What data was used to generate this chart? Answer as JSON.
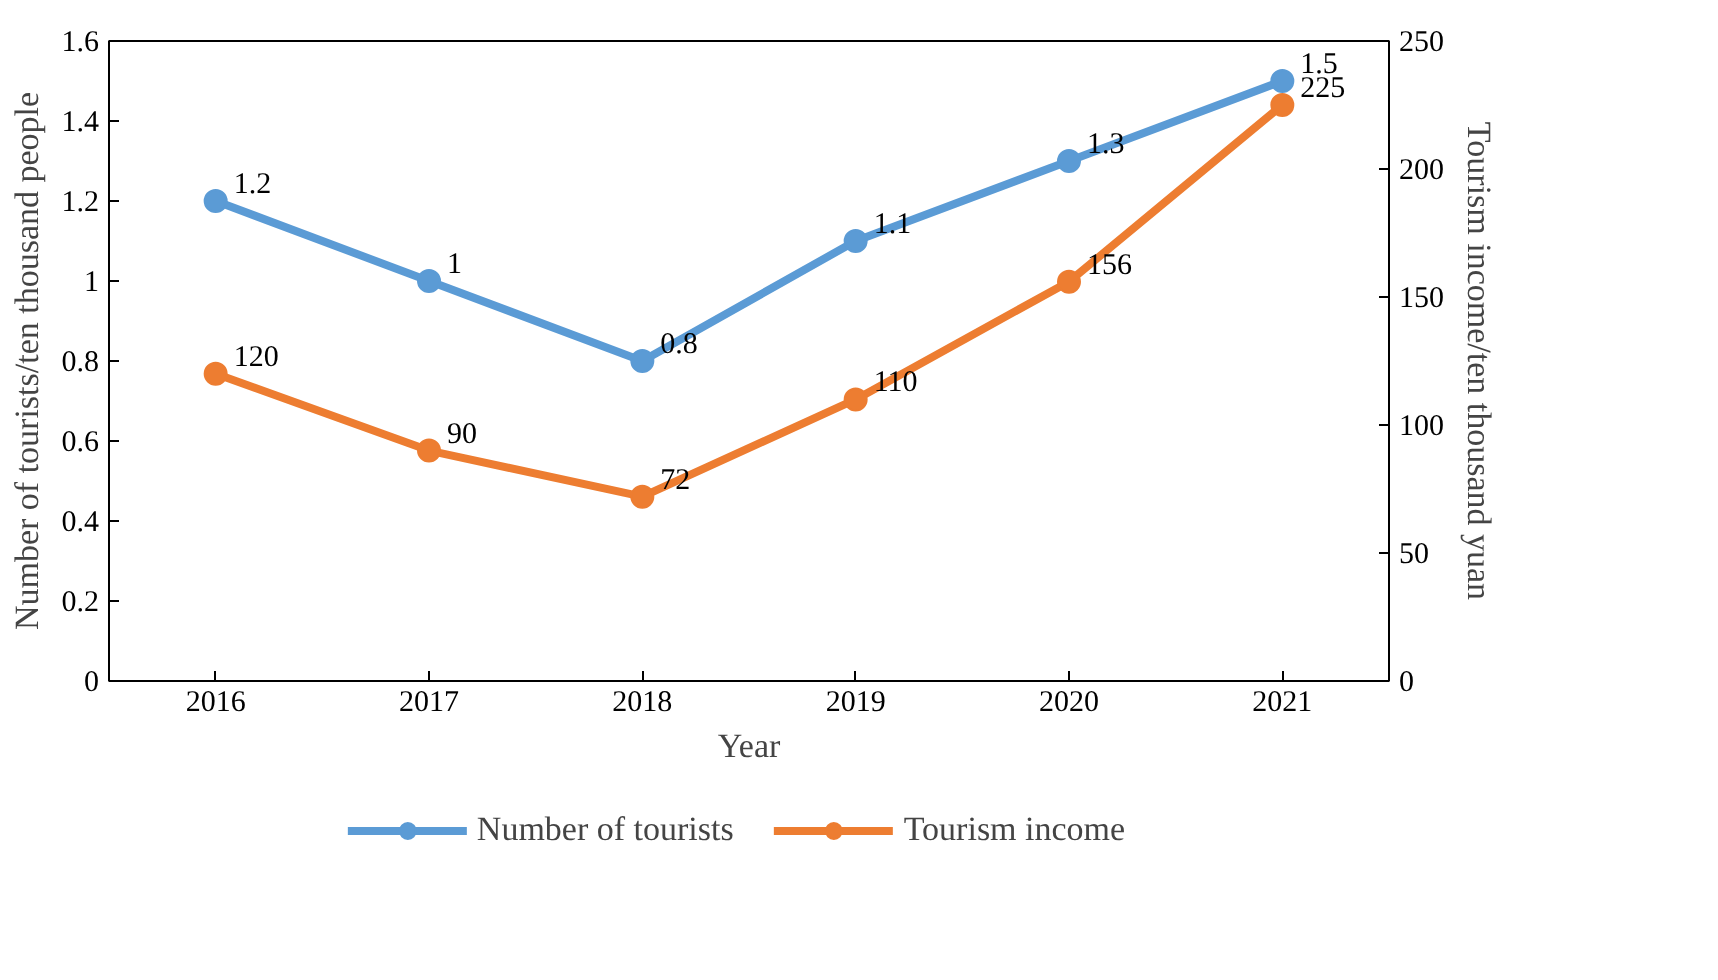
{
  "chart_data": {
    "type": "line",
    "xlabel": "Year",
    "ylabel": "Number of tourists/ten thousand people",
    "y2label": "Tourism income/ten thousand yuan",
    "categories": [
      "2016",
      "2017",
      "2018",
      "2019",
      "2020",
      "2021"
    ],
    "series": [
      {
        "name": "Number of tourists",
        "color": "#5b9bd5",
        "values": [
          1.2,
          1,
          0.8,
          1.1,
          1.3,
          1.5
        ]
      },
      {
        "name": "Tourism income",
        "color": "#ed7d31",
        "values": [
          120,
          90,
          72,
          110,
          156,
          225
        ],
        "axis": "y2"
      }
    ],
    "ylim": [
      0,
      1.6
    ],
    "yticks": [
      0,
      0.2,
      0.4,
      0.6,
      0.8,
      1,
      1.2,
      1.4,
      1.6
    ],
    "y2lim": [
      0,
      250
    ],
    "y2ticks": [
      0,
      50,
      100,
      150,
      200,
      250
    ],
    "data_labels": true,
    "grid": false,
    "legend": "bottom",
    "marker": "circle",
    "line_style": "solid"
  }
}
